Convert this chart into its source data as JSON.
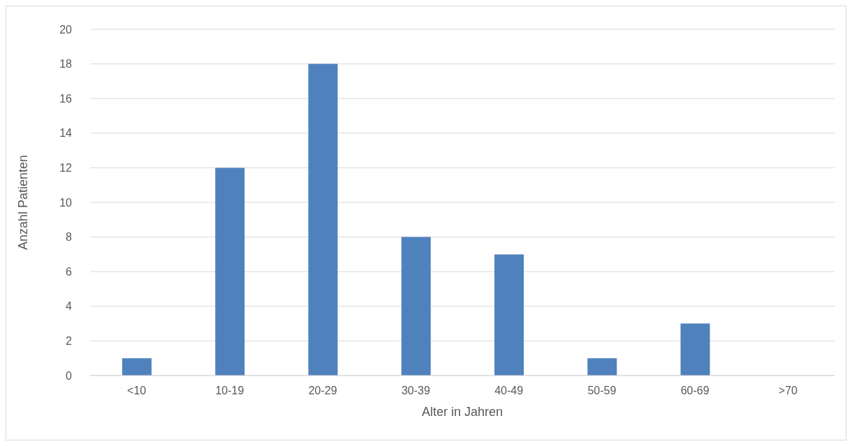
{
  "chart_data": {
    "type": "bar",
    "xlabel": "Alter in Jahren",
    "ylabel": "Anzahl Patienten",
    "categories": [
      "<10",
      "10-19",
      "20-29",
      "30-39",
      "40-49",
      "50-59",
      "60-69",
      ">70"
    ],
    "values": [
      1,
      12,
      18,
      8,
      7,
      1,
      3,
      0
    ],
    "color": "#4f81bd",
    "ylim": [
      0,
      20
    ],
    "yticks": [
      0,
      2,
      4,
      6,
      8,
      10,
      12,
      14,
      16,
      18,
      20
    ],
    "grid": "y",
    "legend": false
  }
}
